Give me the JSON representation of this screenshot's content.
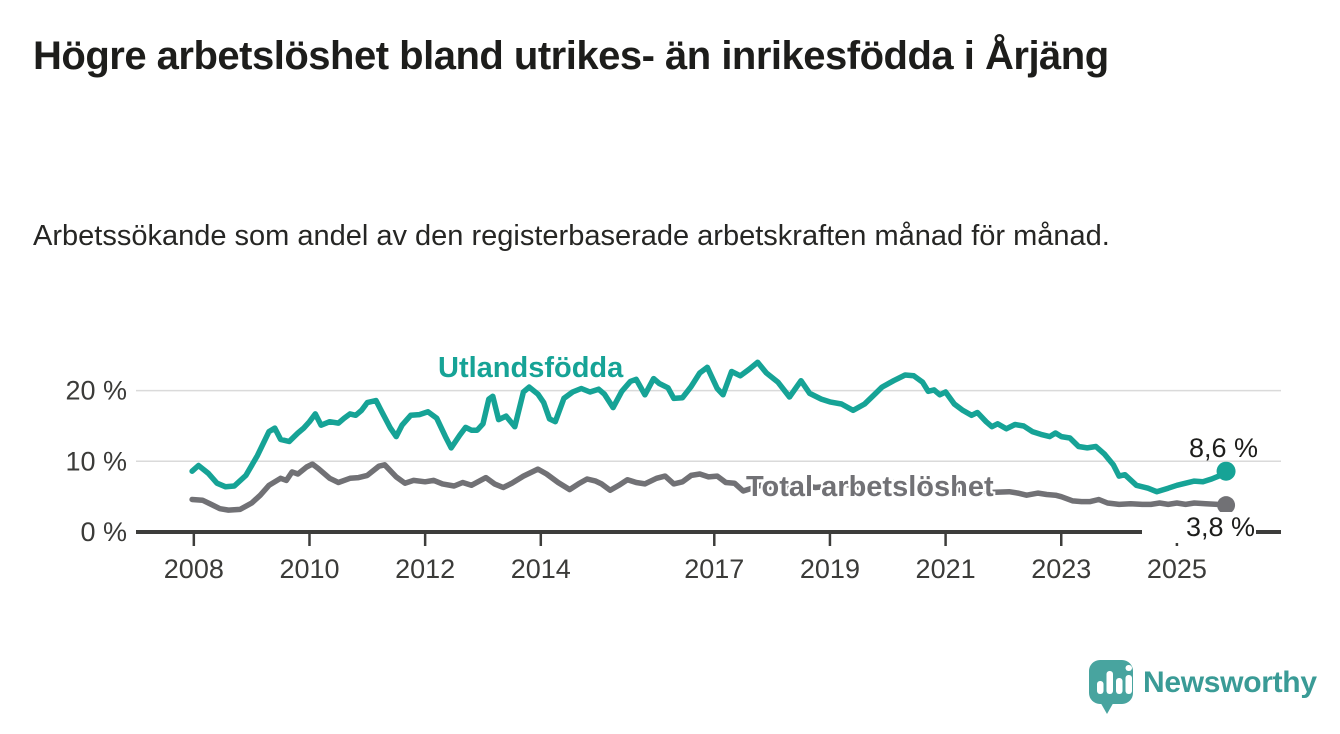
{
  "header": {
    "title": "Högre arbetslöshet bland utrikes- än inrikesfödda i Årjäng",
    "subtitle": "Arbetssökande som andel av den registerbaserade arbetskraften månad för månad."
  },
  "colors": {
    "accent_teal": "#16a396",
    "series_gray": "#717175",
    "text_dark": "#1d1d1b",
    "gridline": "#dadada",
    "axis": "#3d3d3b",
    "logo_teal": "#48a49f",
    "logo_text_teal": "#3a9b96"
  },
  "chart_data": {
    "type": "line",
    "unit": "%",
    "grid": "horizontal",
    "legend_position": "inline-labels-on-chart",
    "xlim": [
      2007.0,
      2026.8
    ],
    "ylim": [
      0,
      26.45
    ],
    "yticks": [
      {
        "value": 0,
        "label": "0 %"
      },
      {
        "value": 10,
        "label": "10 %"
      },
      {
        "value": 20,
        "label": "20 %"
      }
    ],
    "xticks": [
      {
        "value": 2008,
        "label": "2008"
      },
      {
        "value": 2010,
        "label": "2010"
      },
      {
        "value": 2012,
        "label": "2012"
      },
      {
        "value": 2014,
        "label": "2014"
      },
      {
        "value": 2017,
        "label": "2017"
      },
      {
        "value": 2019,
        "label": "2019"
      },
      {
        "value": 2021,
        "label": "2021"
      },
      {
        "value": 2023,
        "label": "2023"
      },
      {
        "value": 2025,
        "label": "2025"
      }
    ],
    "series": [
      {
        "name": "Utlandsfödda",
        "color": "#16a396",
        "end_value": 8.6,
        "end_label": "8,6 %",
        "end_dot_radius": 9.5,
        "points": [
          [
            2007.97,
            8.6
          ],
          [
            2008.08,
            9.4
          ],
          [
            2008.25,
            8.3
          ],
          [
            2008.4,
            6.9
          ],
          [
            2008.55,
            6.4
          ],
          [
            2008.7,
            6.5
          ],
          [
            2008.9,
            8.0
          ],
          [
            2009.1,
            10.8
          ],
          [
            2009.3,
            14.2
          ],
          [
            2009.4,
            14.7
          ],
          [
            2009.5,
            13.1
          ],
          [
            2009.65,
            12.8
          ],
          [
            2009.8,
            14.0
          ],
          [
            2009.9,
            14.7
          ],
          [
            2010.0,
            15.6
          ],
          [
            2010.1,
            16.7
          ],
          [
            2010.2,
            15.1
          ],
          [
            2010.35,
            15.6
          ],
          [
            2010.5,
            15.4
          ],
          [
            2010.6,
            16.1
          ],
          [
            2010.7,
            16.7
          ],
          [
            2010.8,
            16.5
          ],
          [
            2010.9,
            17.2
          ],
          [
            2011.0,
            18.3
          ],
          [
            2011.15,
            18.6
          ],
          [
            2011.25,
            17.0
          ],
          [
            2011.4,
            14.7
          ],
          [
            2011.5,
            13.5
          ],
          [
            2011.6,
            15.1
          ],
          [
            2011.75,
            16.5
          ],
          [
            2011.9,
            16.6
          ],
          [
            2012.05,
            17.0
          ],
          [
            2012.2,
            16.1
          ],
          [
            2012.35,
            13.5
          ],
          [
            2012.45,
            11.9
          ],
          [
            2012.6,
            13.7
          ],
          [
            2012.7,
            14.8
          ],
          [
            2012.8,
            14.4
          ],
          [
            2012.9,
            14.4
          ],
          [
            2013.0,
            15.3
          ],
          [
            2013.1,
            18.8
          ],
          [
            2013.17,
            19.2
          ],
          [
            2013.27,
            15.9
          ],
          [
            2013.4,
            16.4
          ],
          [
            2013.55,
            14.9
          ],
          [
            2013.7,
            19.8
          ],
          [
            2013.8,
            20.5
          ],
          [
            2013.95,
            19.5
          ],
          [
            2014.05,
            18.3
          ],
          [
            2014.15,
            16.0
          ],
          [
            2014.25,
            15.6
          ],
          [
            2014.4,
            18.9
          ],
          [
            2014.55,
            19.8
          ],
          [
            2014.7,
            20.3
          ],
          [
            2014.85,
            19.8
          ],
          [
            2015.0,
            20.2
          ],
          [
            2015.1,
            19.5
          ],
          [
            2015.25,
            17.6
          ],
          [
            2015.4,
            19.9
          ],
          [
            2015.55,
            21.3
          ],
          [
            2015.65,
            21.6
          ],
          [
            2015.8,
            19.4
          ],
          [
            2015.95,
            21.7
          ],
          [
            2016.05,
            21.0
          ],
          [
            2016.2,
            20.4
          ],
          [
            2016.3,
            18.9
          ],
          [
            2016.45,
            19.0
          ],
          [
            2016.6,
            20.6
          ],
          [
            2016.75,
            22.5
          ],
          [
            2016.88,
            23.3
          ],
          [
            2017.05,
            20.3
          ],
          [
            2017.15,
            19.4
          ],
          [
            2017.3,
            22.7
          ],
          [
            2017.45,
            22.1
          ],
          [
            2017.6,
            23.0
          ],
          [
            2017.75,
            24.0
          ],
          [
            2017.9,
            22.5
          ],
          [
            2018.1,
            21.2
          ],
          [
            2018.3,
            19.1
          ],
          [
            2018.5,
            21.4
          ],
          [
            2018.65,
            19.6
          ],
          [
            2018.85,
            18.8
          ],
          [
            2019.0,
            18.4
          ],
          [
            2019.2,
            18.1
          ],
          [
            2019.4,
            17.2
          ],
          [
            2019.6,
            18.1
          ],
          [
            2019.75,
            19.3
          ],
          [
            2019.9,
            20.5
          ],
          [
            2020.1,
            21.4
          ],
          [
            2020.3,
            22.2
          ],
          [
            2020.45,
            22.1
          ],
          [
            2020.6,
            21.2
          ],
          [
            2020.7,
            19.9
          ],
          [
            2020.8,
            20.1
          ],
          [
            2020.9,
            19.4
          ],
          [
            2021.0,
            19.8
          ],
          [
            2021.15,
            18.1
          ],
          [
            2021.3,
            17.2
          ],
          [
            2021.45,
            16.5
          ],
          [
            2021.55,
            16.9
          ],
          [
            2021.7,
            15.6
          ],
          [
            2021.8,
            14.9
          ],
          [
            2021.9,
            15.3
          ],
          [
            2022.05,
            14.6
          ],
          [
            2022.2,
            15.2
          ],
          [
            2022.35,
            15.0
          ],
          [
            2022.5,
            14.2
          ],
          [
            2022.65,
            13.8
          ],
          [
            2022.8,
            13.5
          ],
          [
            2022.9,
            14.0
          ],
          [
            2023.0,
            13.5
          ],
          [
            2023.15,
            13.3
          ],
          [
            2023.3,
            12.1
          ],
          [
            2023.45,
            11.9
          ],
          [
            2023.6,
            12.1
          ],
          [
            2023.75,
            11.0
          ],
          [
            2023.9,
            9.5
          ],
          [
            2024.0,
            7.9
          ],
          [
            2024.1,
            8.1
          ],
          [
            2024.3,
            6.6
          ],
          [
            2024.5,
            6.2
          ],
          [
            2024.65,
            5.7
          ],
          [
            2024.85,
            6.2
          ],
          [
            2025.0,
            6.6
          ],
          [
            2025.15,
            6.9
          ],
          [
            2025.3,
            7.2
          ],
          [
            2025.45,
            7.1
          ],
          [
            2025.6,
            7.5
          ],
          [
            2025.75,
            8.0
          ],
          [
            2025.85,
            8.6
          ]
        ]
      },
      {
        "name": "Total arbetslöshet",
        "color": "#717175",
        "end_value": 3.8,
        "end_label": "3,8 %",
        "end_dot_radius": 9,
        "points": [
          [
            2007.97,
            4.6
          ],
          [
            2008.15,
            4.5
          ],
          [
            2008.3,
            3.9
          ],
          [
            2008.45,
            3.3
          ],
          [
            2008.6,
            3.1
          ],
          [
            2008.8,
            3.2
          ],
          [
            2009.0,
            4.1
          ],
          [
            2009.15,
            5.2
          ],
          [
            2009.3,
            6.6
          ],
          [
            2009.5,
            7.6
          ],
          [
            2009.6,
            7.3
          ],
          [
            2009.7,
            8.5
          ],
          [
            2009.8,
            8.2
          ],
          [
            2009.95,
            9.2
          ],
          [
            2010.05,
            9.6
          ],
          [
            2010.15,
            9.0
          ],
          [
            2010.35,
            7.6
          ],
          [
            2010.5,
            7.0
          ],
          [
            2010.7,
            7.6
          ],
          [
            2010.85,
            7.7
          ],
          [
            2011.0,
            8.0
          ],
          [
            2011.2,
            9.3
          ],
          [
            2011.3,
            9.5
          ],
          [
            2011.5,
            7.8
          ],
          [
            2011.65,
            6.9
          ],
          [
            2011.8,
            7.3
          ],
          [
            2012.0,
            7.1
          ],
          [
            2012.15,
            7.3
          ],
          [
            2012.3,
            6.8
          ],
          [
            2012.5,
            6.5
          ],
          [
            2012.65,
            7.0
          ],
          [
            2012.8,
            6.6
          ],
          [
            2013.05,
            7.7
          ],
          [
            2013.2,
            6.8
          ],
          [
            2013.35,
            6.3
          ],
          [
            2013.5,
            6.9
          ],
          [
            2013.7,
            7.9
          ],
          [
            2013.95,
            8.9
          ],
          [
            2014.1,
            8.2
          ],
          [
            2014.3,
            7.0
          ],
          [
            2014.5,
            6.0
          ],
          [
            2014.65,
            6.8
          ],
          [
            2014.8,
            7.5
          ],
          [
            2014.95,
            7.2
          ],
          [
            2015.05,
            6.8
          ],
          [
            2015.2,
            5.9
          ],
          [
            2015.35,
            6.6
          ],
          [
            2015.5,
            7.4
          ],
          [
            2015.65,
            7.0
          ],
          [
            2015.8,
            6.8
          ],
          [
            2016.0,
            7.6
          ],
          [
            2016.15,
            7.9
          ],
          [
            2016.3,
            6.8
          ],
          [
            2016.45,
            7.1
          ],
          [
            2016.6,
            8.0
          ],
          [
            2016.75,
            8.2
          ],
          [
            2016.9,
            7.8
          ],
          [
            2017.05,
            7.9
          ],
          [
            2017.2,
            7.0
          ],
          [
            2017.35,
            6.9
          ],
          [
            2017.5,
            5.8
          ],
          [
            2017.65,
            6.2
          ],
          [
            2017.8,
            6.6
          ],
          [
            2017.95,
            6.3
          ],
          [
            2018.15,
            6.7
          ],
          [
            2018.35,
            6.2
          ],
          [
            2018.55,
            6.6
          ],
          [
            2018.75,
            6.3
          ],
          [
            2019.0,
            6.5
          ],
          [
            2019.25,
            6.8
          ],
          [
            2019.5,
            6.3
          ],
          [
            2019.75,
            6.6
          ],
          [
            2020.0,
            6.9
          ],
          [
            2020.2,
            7.1
          ],
          [
            2020.4,
            6.8
          ],
          [
            2020.6,
            6.6
          ],
          [
            2020.8,
            6.4
          ],
          [
            2021.0,
            6.3
          ],
          [
            2021.2,
            6.0
          ],
          [
            2021.4,
            5.9
          ],
          [
            2021.6,
            5.7
          ],
          [
            2021.8,
            5.6
          ],
          [
            2022.1,
            5.7
          ],
          [
            2022.25,
            5.5
          ],
          [
            2022.4,
            5.2
          ],
          [
            2022.6,
            5.5
          ],
          [
            2022.75,
            5.3
          ],
          [
            2022.9,
            5.2
          ],
          [
            2023.0,
            5.0
          ],
          [
            2023.2,
            4.4
          ],
          [
            2023.35,
            4.3
          ],
          [
            2023.5,
            4.3
          ],
          [
            2023.65,
            4.6
          ],
          [
            2023.8,
            4.1
          ],
          [
            2024.0,
            3.9
          ],
          [
            2024.2,
            4.0
          ],
          [
            2024.4,
            3.9
          ],
          [
            2024.55,
            3.9
          ],
          [
            2024.7,
            4.1
          ],
          [
            2024.85,
            3.9
          ],
          [
            2025.0,
            4.1
          ],
          [
            2025.15,
            3.9
          ],
          [
            2025.3,
            4.1
          ],
          [
            2025.5,
            4.0
          ],
          [
            2025.7,
            3.9
          ],
          [
            2025.85,
            3.8
          ]
        ]
      }
    ]
  },
  "branding": {
    "name": "Newsworthy"
  }
}
